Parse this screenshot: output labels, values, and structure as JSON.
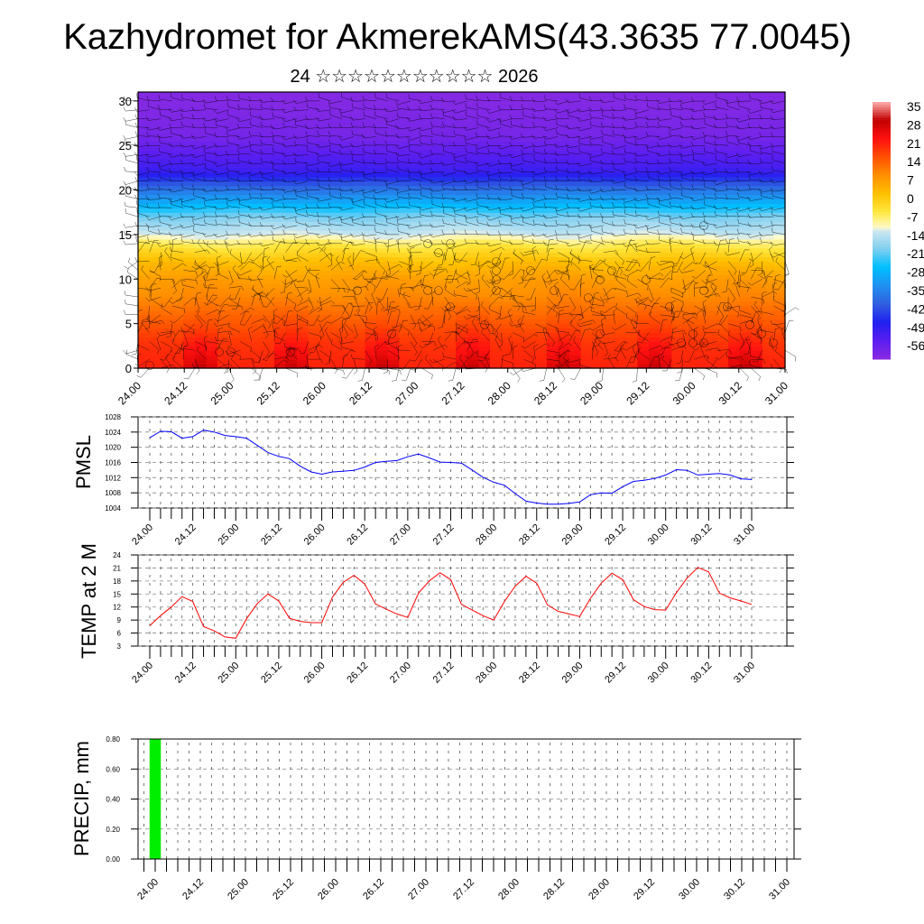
{
  "title": "Kazhydromet for AkmerekAMS(43.3635 77.0045)",
  "subtitle": "24 ☆☆☆☆☆☆☆☆☆☆☆ 2026",
  "chart_data": [
    {
      "type": "heatmap",
      "name": "vertical temperature and wind cross-section",
      "x_labels": [
        "24.00",
        "24.12",
        "25.00",
        "25.12",
        "26.00",
        "26.12",
        "27.00",
        "27.12",
        "28.00",
        "28.12",
        "29.00",
        "29.12",
        "30.00",
        "30.12",
        "31.00"
      ],
      "y_ticks": [
        "0",
        "5",
        "10",
        "15",
        "20",
        "25",
        "30"
      ],
      "ylim": [
        0,
        31
      ],
      "colorbar_labels": [
        "35",
        "28",
        "21",
        "14",
        "7",
        "0",
        "-7",
        "-14",
        "-21",
        "-28",
        "-35",
        "-42",
        "-49",
        "-56"
      ],
      "colorbar_range": [
        -63,
        35
      ],
      "approx_profile": {
        "height": [
          0,
          3,
          5,
          8,
          10,
          12,
          14,
          15,
          17,
          19,
          21,
          22,
          24,
          26,
          30
        ],
        "temp": [
          22,
          18,
          14,
          8,
          5,
          0,
          -8,
          -14,
          -21,
          -33,
          -45,
          -52,
          -56,
          -60,
          -62
        ]
      },
      "overlay": "wind barbs"
    },
    {
      "type": "line",
      "ylabel": "PMSL",
      "ylim": [
        1004,
        1028
      ],
      "y_ticks": [
        "1028",
        "1024",
        "1020",
        "1016",
        "1012",
        "1008",
        "1004"
      ],
      "x_step_hours": 3,
      "x_labels": [
        "24.00",
        "24.12",
        "25.00",
        "25.12",
        "26.00",
        "26.12",
        "27.00",
        "27.12",
        "28.00",
        "28.12",
        "29.00",
        "29.12",
        "30.00",
        "30.12",
        "31.00"
      ],
      "color": "#0000ff",
      "values": [
        1022.5,
        1024.2,
        1024.1,
        1022.4,
        1022.8,
        1024.5,
        1024.0,
        1023.1,
        1022.8,
        1022.4,
        1020.5,
        1018.6,
        1017.6,
        1017.0,
        1015.0,
        1013.5,
        1012.9,
        1013.5,
        1013.7,
        1013.9,
        1014.8,
        1016.0,
        1016.3,
        1016.5,
        1017.5,
        1018.2,
        1017.2,
        1016.1,
        1016.0,
        1015.8,
        1014.0,
        1012.1,
        1010.8,
        1010.0,
        1007.8,
        1005.8,
        1005.3,
        1005.0,
        1005.0,
        1005.2,
        1005.6,
        1007.5,
        1008.0,
        1007.9,
        1009.6,
        1011.0,
        1011.3,
        1011.8,
        1012.7,
        1014.1,
        1013.9,
        1012.7,
        1012.9,
        1013.1,
        1012.7,
        1011.7,
        1011.5
      ]
    },
    {
      "type": "line",
      "ylabel": "TEMP at 2 M",
      "ylim": [
        3,
        24
      ],
      "y_ticks": [
        "24",
        "21",
        "18",
        "15",
        "12",
        "9",
        "6",
        "3"
      ],
      "x_step_hours": 3,
      "x_labels": [
        "24.00",
        "24.12",
        "25.00",
        "25.12",
        "26.00",
        "26.12",
        "27.00",
        "27.12",
        "28.00",
        "28.12",
        "29.00",
        "29.12",
        "30.00",
        "30.12",
        "31.00"
      ],
      "color": "#ff0000",
      "values": [
        7.7,
        10.0,
        12.0,
        14.4,
        13.3,
        7.5,
        6.5,
        5.1,
        4.8,
        9.3,
        12.8,
        15.0,
        13.4,
        9.4,
        8.7,
        8.4,
        8.4,
        14.3,
        17.7,
        19.3,
        17.3,
        12.7,
        11.5,
        10.4,
        9.6,
        15.2,
        18.0,
        19.9,
        18.3,
        12.6,
        11.3,
        10.0,
        9.0,
        13.3,
        16.8,
        19.1,
        17.5,
        12.5,
        11.0,
        10.4,
        9.8,
        14.0,
        17.5,
        19.8,
        18.3,
        13.7,
        12.1,
        11.4,
        11.3,
        15.3,
        18.7,
        21.1,
        20.1,
        15.2,
        14.1,
        13.4,
        12.6
      ]
    },
    {
      "type": "bar",
      "ylabel": "PRECIP, mm",
      "ylim": [
        0,
        0.8
      ],
      "y_ticks": [
        "0.80",
        "0.60",
        "0.40",
        "0.20",
        "0.00"
      ],
      "x_labels": [
        "24.00",
        "24.12",
        "25.00",
        "25.12",
        "26.00",
        "26.12",
        "27.00",
        "27.12",
        "28.00",
        "28.12",
        "29.00",
        "29.12",
        "30.00",
        "30.12",
        "31.00"
      ],
      "color": "#00ee00",
      "bars": [
        {
          "hour": 0,
          "value": 0.8
        }
      ]
    }
  ]
}
